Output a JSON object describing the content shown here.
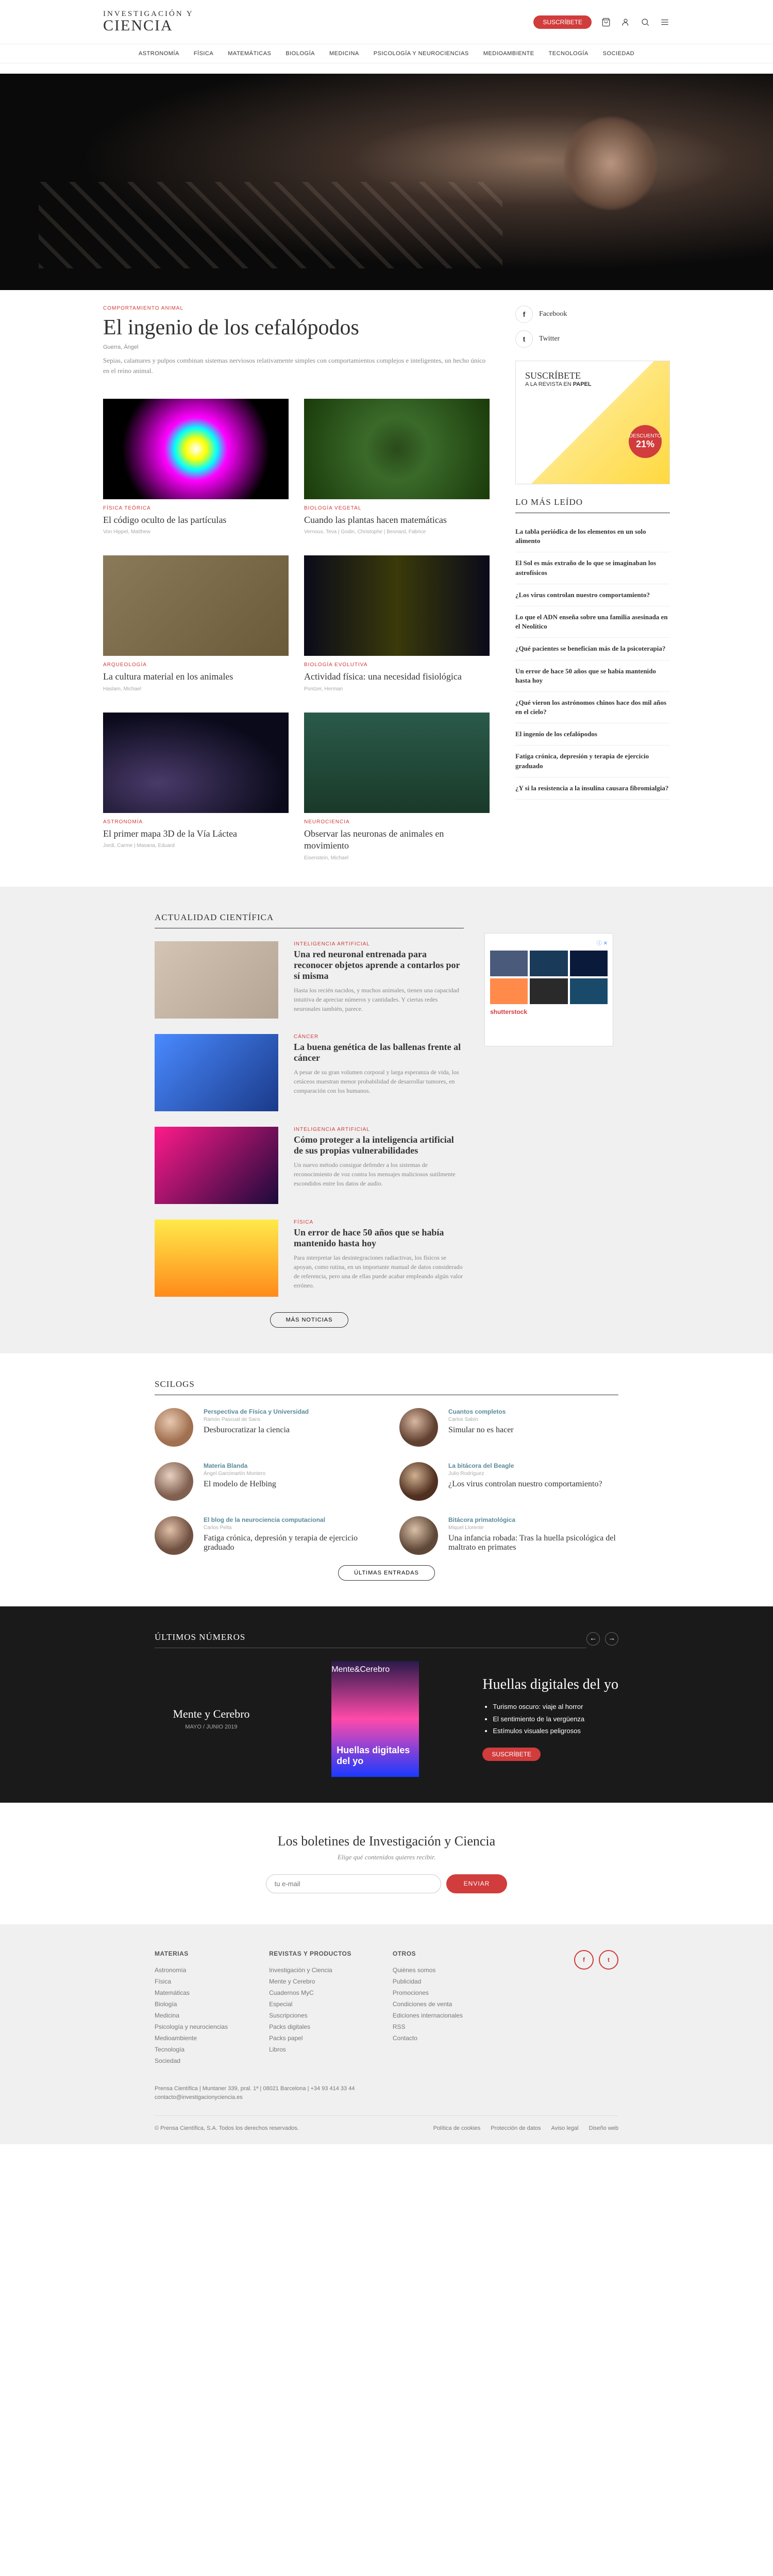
{
  "header": {
    "logo_line1": "INVESTIGACIÓN Y",
    "logo_line2": "CIENCIA",
    "subscribe": "SUSCRÍBETE"
  },
  "nav": [
    "ASTRONOMÍA",
    "FÍSICA",
    "MATEMÁTICAS",
    "BIOLOGÍA",
    "MEDICINA",
    "PSICOLOGÍA Y NEUROCIENCIAS",
    "MEDIOAMBIENTE",
    "TECNOLOGÍA",
    "SOCIEDAD"
  ],
  "hero": {
    "category": "COMPORTAMIENTO ANIMAL",
    "title": "El ingenio de los cefalópodos",
    "author": "Guerra, Ángel",
    "desc": "Sepias, calamares y pulpos combinan sistemas nerviosos relativamente simples con comportamientos complejos e inteligentes, un hecho único en el reino animal."
  },
  "social": {
    "fb": "Facebook",
    "tw": "Twitter"
  },
  "subbox": {
    "title": "SUSCRÍBETE",
    "sub": "A LA REVISTA EN PAPEL",
    "discount_label": "DESCUENTO",
    "discount_pct": "21%"
  },
  "mostread_title": "LO MÁS LEÍDO",
  "mostread": [
    "La tabla periódica de los elementos en un solo alimento",
    "El Sol es más extraño de lo que se imaginaban los astrofísicos",
    "¿Los virus controlan nuestro comportamiento?",
    "Lo que el ADN enseña sobre una familia asesinada en el Neolítico",
    "¿Qué pacientes se benefician más de la psicoterapia?",
    "Un error de hace 50 años que se había mantenido hasta hoy",
    "¿Qué vieron los astrónomos chinos hace dos mil años en el cielo?",
    "El ingenio de los cefalópodos",
    "Fatiga crónica, depresión y terapia de ejercicio graduado",
    "¿Y si la resistencia a la insulina causara fibromialgia?"
  ],
  "articles": [
    {
      "cat": "FÍSICA TEÓRICA",
      "title": "El código oculto de las partículas",
      "authors": "Von Hippel, Matthew"
    },
    {
      "cat": "BIOLOGÍA VEGETAL",
      "title": "Cuando las plantas hacen matemáticas",
      "authors": "Vernoux, Teva | Godin, Christophe | Besnard, Fabrice"
    },
    {
      "cat": "ARQUEOLOGÍA",
      "title": "La cultura material en los animales",
      "authors": "Haslam, Michael"
    },
    {
      "cat": "BIOLOGÍA EVOLUTIVA",
      "title": "Actividad física: una necesidad fisiológica",
      "authors": "Pontzer, Herman"
    },
    {
      "cat": "ASTRONOMÍA",
      "title": "El primer mapa 3D de la Vía Láctea",
      "authors": "Jordi, Carme | Masana, Eduard"
    },
    {
      "cat": "NEUROCIENCIA",
      "title": "Observar las neuronas de animales en movimiento",
      "authors": "Eisenstein, Michael"
    }
  ],
  "news_title": "ACTUALIDAD CIENTÍFICA",
  "news": [
    {
      "cat": "INTELIGENCIA ARTIFICIAL",
      "title": "Una red neuronal entrenada para reconocer objetos aprende a contarlos por sí misma",
      "desc": "Hasta los recién nacidos, y muchos animales, tienen una capacidad intuitiva de apreciar números y cantidades. Y ciertas redes neuronales también, parece."
    },
    {
      "cat": "CÁNCER",
      "title": "La buena genética de las ballenas frente al cáncer",
      "desc": "A pesar de su gran volumen corporal y larga esperanza de vida, los cetáceos muestran menor probabilidad de desarrollar tumores, en comparación con los humanos."
    },
    {
      "cat": "INTELIGENCIA ARTIFICIAL",
      "title": "Cómo proteger a la inteligencia artificial de sus propias vulnerabilidades",
      "desc": "Un nuevo método consigue defender a los sistemas de reconocimiento de voz contra los mensajes maliciosos sutilmente escondidos entre los datos de audio."
    },
    {
      "cat": "FÍSICA",
      "title": "Un error de hace 50 años que se había mantenido hasta hoy",
      "desc": "Para interpretar las desintegraciones radiactivas, los físicos se apoyan, como rutina, en un importante manual de datos considerado de referencia, pero una de ellas puede acabar empleando algún valor erróneo."
    }
  ],
  "more_news": "MÁS NOTICIAS",
  "scilogs_title": "SCILOGS",
  "scilogs": [
    {
      "blog": "Perspectiva de Física y Universidad",
      "author": "Ramón Pascual de Sans",
      "title": "Desburocratizar la ciencia"
    },
    {
      "blog": "Cuantos completos",
      "author": "Carlos Sabín",
      "title": "Simular no es hacer"
    },
    {
      "blog": "Materia Blanda",
      "author": "Ángel Garcimartín Montero",
      "title": "El modelo de Helbing"
    },
    {
      "blog": "La bitácora del Beagle",
      "author": "Julio Rodríguez",
      "title": "¿Los virus controlan nuestro comportamiento?"
    },
    {
      "blog": "El blog de la neurociencia computacional",
      "author": "Carlos Pelta",
      "title": "Fatiga crónica, depresión y terapia de ejercicio graduado"
    },
    {
      "blog": "Bitácora primatológica",
      "author": "Miquel Llorente",
      "title": "Una infancia robada: Tras la huella psicológica del maltrato en primates"
    }
  ],
  "latest_posts": "ÚLTIMAS ENTRADAS",
  "issues_title": "ÚLTIMOS NÚMEROS",
  "issue": {
    "mag": "Mente y Cerebro",
    "date": "MAYO / JUNIO 2019",
    "cover_mag": "Mente&Cerebro",
    "cover_headline": "Huellas digitales del yo",
    "title": "Huellas digitales del yo",
    "bullets": [
      "Turismo oscuro: viaje al horror",
      "El sentimiento de la vergüenza",
      "Estímulos visuales peligrosos"
    ],
    "subscribe": "SUSCRÍBETE"
  },
  "newsletter": {
    "title": "Los boletines de Investigación y Ciencia",
    "sub": "Elige qué contenidos quieres recibir.",
    "placeholder": "tu e-mail",
    "btn": "ENVIAR"
  },
  "footer": {
    "col1_title": "MATERIAS",
    "col1": [
      "Astronomía",
      "Física",
      "Matemáticas",
      "Biología",
      "Medicina",
      "Psicología y neurociencias",
      "Medioambiente",
      "Tecnología",
      "Sociedad"
    ],
    "col2_title": "REVISTAS Y PRODUCTOS",
    "col2": [
      "Investigación y Ciencia",
      "Mente y Cerebro",
      "Cuadernos MyC",
      "Especial",
      "Suscripciones",
      "Packs digitales",
      "Packs papel",
      "Libros"
    ],
    "col3_title": "OTROS",
    "col3": [
      "Quiénes somos",
      "Publicidad",
      "Promociones",
      "Condiciones de venta",
      "Ediciones internacionales",
      "RSS",
      "Contacto"
    ],
    "contact1": "Prensa Científica | Muntaner 339, pral. 1ª | 08021 Barcelona | +34 93 414 33 44",
    "contact2": "contacto@investigacionyciencia.es",
    "copyright": "© Prensa Científica, S.A. Todos los derechos reservados.",
    "links": [
      "Política de cookies",
      "Protección de datos",
      "Aviso legal",
      "Diseño web"
    ]
  },
  "ad_logo": "shutterstock"
}
